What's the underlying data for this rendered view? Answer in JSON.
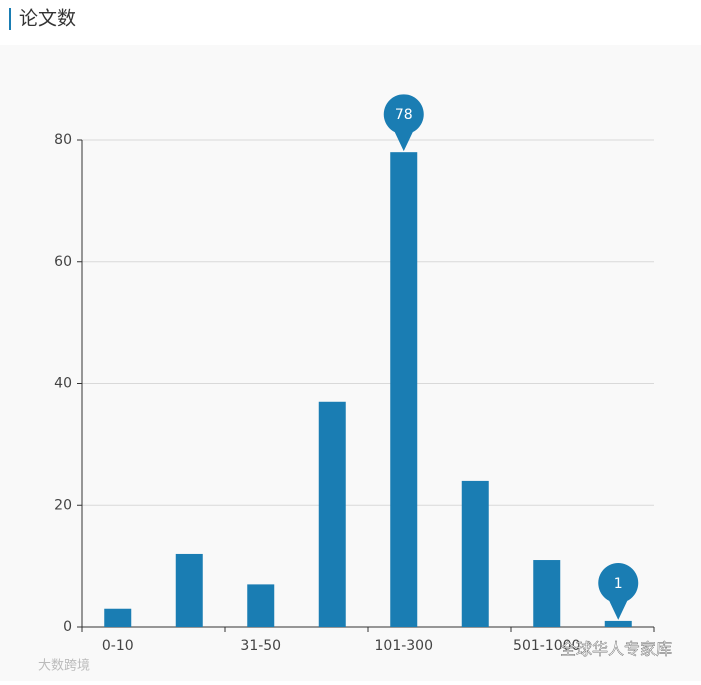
{
  "title": "论文数",
  "chart_data": {
    "type": "bar",
    "categories": [
      "0-10",
      null,
      "31-50",
      null,
      "101-300",
      null,
      "501-1000",
      null
    ],
    "values": [
      3,
      12,
      7,
      37,
      78,
      24,
      11,
      1
    ],
    "color": "#1a7db3",
    "ylim": [
      0,
      80
    ],
    "yticks": [
      0,
      20,
      40,
      60,
      80
    ],
    "grid": true,
    "markers": [
      "max",
      "min"
    ]
  },
  "watermarks": [
    "大数跨境",
    "全球华人专家库"
  ]
}
